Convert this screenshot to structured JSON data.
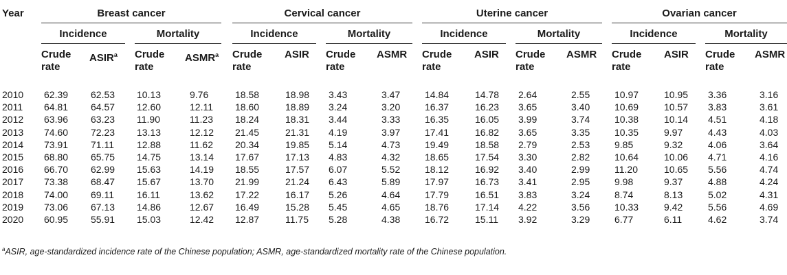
{
  "header": {
    "year": "Year",
    "groups": [
      "Breast cancer",
      "Cervical cancer",
      "Uterine cancer",
      "Ovarian cancer"
    ],
    "incidence": "Incidence",
    "mortality": "Mortality",
    "crude_line1": "Crude",
    "crude_line2": "rate",
    "asir": "ASIR",
    "asmr": "ASMR",
    "sup_a": "a"
  },
  "rows": [
    [
      "2010",
      "62.39",
      "62.53",
      "10.13",
      "9.76",
      "18.58",
      "18.98",
      "3.43",
      "3.47",
      "14.84",
      "14.78",
      "2.64",
      "2.55",
      "10.97",
      "10.95",
      "3.36",
      "3.16"
    ],
    [
      "2011",
      "64.81",
      "64.57",
      "12.60",
      "12.11",
      "18.60",
      "18.89",
      "3.24",
      "3.20",
      "16.37",
      "16.23",
      "3.65",
      "3.40",
      "10.69",
      "10.57",
      "3.83",
      "3.61"
    ],
    [
      "2012",
      "63.96",
      "63.23",
      "11.90",
      "11.23",
      "18.24",
      "18.31",
      "3.44",
      "3.33",
      "16.35",
      "16.05",
      "3.99",
      "3.74",
      "10.38",
      "10.14",
      "4.51",
      "4.18"
    ],
    [
      "2013",
      "74.60",
      "72.23",
      "13.13",
      "12.12",
      "21.45",
      "21.31",
      "4.19",
      "3.97",
      "17.41",
      "16.82",
      "3.65",
      "3.35",
      "10.35",
      "9.97",
      "4.43",
      "4.03"
    ],
    [
      "2014",
      "73.91",
      "71.11",
      "12.88",
      "11.62",
      "20.34",
      "19.85",
      "5.14",
      "4.73",
      "19.49",
      "18.58",
      "2.79",
      "2.53",
      "9.85",
      "9.32",
      "4.06",
      "3.64"
    ],
    [
      "2015",
      "68.80",
      "65.75",
      "14.75",
      "13.14",
      "17.67",
      "17.13",
      "4.83",
      "4.32",
      "18.65",
      "17.54",
      "3.30",
      "2.82",
      "10.64",
      "10.06",
      "4.71",
      "4.16"
    ],
    [
      "2016",
      "66.70",
      "62.99",
      "15.63",
      "14.19",
      "18.55",
      "17.57",
      "6.07",
      "5.52",
      "18.12",
      "16.92",
      "3.40",
      "2.99",
      "11.20",
      "10.65",
      "5.56",
      "4.74"
    ],
    [
      "2017",
      "73.38",
      "68.47",
      "15.67",
      "13.70",
      "21.99",
      "21.24",
      "6.43",
      "5.89",
      "17.97",
      "16.73",
      "3.41",
      "2.95",
      "9.98",
      "9.37",
      "4.88",
      "4.24"
    ],
    [
      "2018",
      "74.00",
      "69.11",
      "16.11",
      "13.62",
      "17.22",
      "16.17",
      "5.26",
      "4.64",
      "17.79",
      "16.51",
      "3.83",
      "3.24",
      "8.74",
      "8.13",
      "5.02",
      "4.31"
    ],
    [
      "2019",
      "73.06",
      "67.13",
      "14.86",
      "12.67",
      "16.49",
      "15.28",
      "5.45",
      "4.65",
      "18.76",
      "17.14",
      "4.22",
      "3.56",
      "10.33",
      "9.42",
      "5.56",
      "4.69"
    ],
    [
      "2020",
      "60.95",
      "55.91",
      "15.03",
      "12.42",
      "12.87",
      "11.75",
      "5.28",
      "4.38",
      "16.72",
      "15.11",
      "3.92",
      "3.29",
      "6.77",
      "6.11",
      "4.62",
      "3.74"
    ]
  ],
  "footnote": {
    "marker": "a",
    "text": "ASIR, age-standardized incidence rate of the Chinese population; ASMR, age-standardized mortality rate of the Chinese population."
  }
}
